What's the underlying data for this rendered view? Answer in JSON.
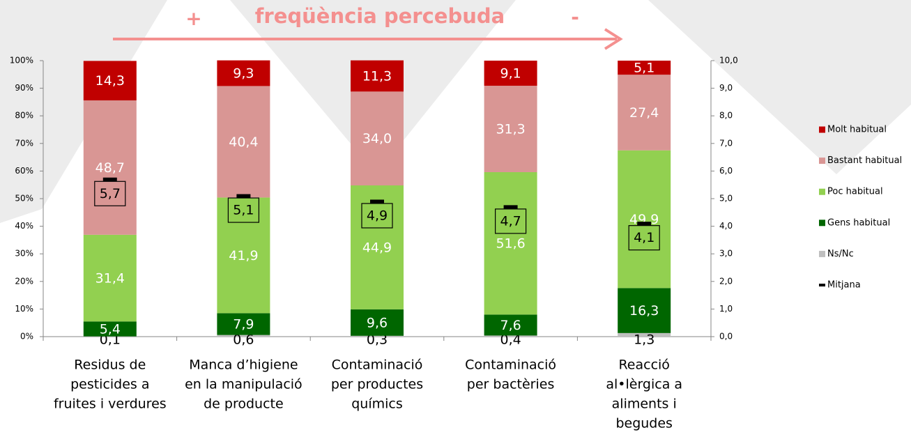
{
  "chart_data": {
    "type": "stacked_bar",
    "title": "freqüència percebuda",
    "annotations": [
      "+",
      "-"
    ],
    "categories": [
      [
        "Residus de",
        "pesticides a",
        "fruites i verdures"
      ],
      [
        "Manca d’higiene",
        "en la manipulació",
        "de producte"
      ],
      [
        "Contaminació",
        "per productes",
        "químics"
      ],
      [
        "Contaminació",
        "per bactèries"
      ],
      [
        "Reacció",
        "al•lèrgica a",
        "aliments i",
        "begudes"
      ]
    ],
    "series": [
      {
        "name": "Ns/Nc",
        "color": "#bfbfbf",
        "values": [
          0.1,
          0.6,
          0.3,
          0.4,
          1.3
        ],
        "value_labels": [
          "0,1",
          "0,6",
          "0,3",
          "0,4",
          "1,3"
        ]
      },
      {
        "name": "Gens habitual",
        "color": "#006600",
        "values": [
          5.4,
          7.9,
          9.6,
          7.6,
          16.3
        ],
        "value_labels": [
          "5,4",
          "7,9",
          "9,6",
          "7,6",
          "16,3"
        ]
      },
      {
        "name": "Poc habitual",
        "color": "#92d050",
        "values": [
          31.4,
          41.9,
          44.9,
          51.6,
          49.9
        ],
        "value_labels": [
          "31,4",
          "41,9",
          "44,9",
          "51,6",
          "49,9"
        ]
      },
      {
        "name": "Bastant habitual",
        "color": "#d99694",
        "values": [
          48.7,
          40.4,
          34.0,
          31.3,
          27.4
        ],
        "value_labels": [
          "48,7",
          "40,4",
          "34,0",
          "31,3",
          "27,4"
        ]
      },
      {
        "name": "Molt habitual",
        "color": "#c00000",
        "values": [
          14.3,
          9.3,
          11.3,
          9.1,
          5.1
        ],
        "value_labels": [
          "14,3",
          "9,3",
          "11,3",
          "9,1",
          "5,1"
        ]
      },
      {
        "name": "Mitjana",
        "color": "#000000",
        "axis": "y2",
        "marker": "dash",
        "values": [
          5.7,
          5.1,
          4.9,
          4.7,
          4.1
        ],
        "value_labels": [
          "5,7",
          "5,1",
          "4,9",
          "4,7",
          "4,1"
        ]
      }
    ],
    "ylim": [
      0,
      100
    ],
    "yticks": [
      {
        "value": 0,
        "label": "0%"
      },
      {
        "value": 10,
        "label": "10%"
      },
      {
        "value": 20,
        "label": "20%"
      },
      {
        "value": 30,
        "label": "30%"
      },
      {
        "value": 40,
        "label": "40%"
      },
      {
        "value": 50,
        "label": "50%"
      },
      {
        "value": 60,
        "label": "60%"
      },
      {
        "value": 70,
        "label": "70%"
      },
      {
        "value": 80,
        "label": "80%"
      },
      {
        "value": 90,
        "label": "90%"
      },
      {
        "value": 100,
        "label": "100%"
      }
    ],
    "y2lim": [
      0,
      10
    ],
    "y2ticks": [
      {
        "value": 0,
        "label": "0,0"
      },
      {
        "value": 1,
        "label": "1,0"
      },
      {
        "value": 2,
        "label": "2,0"
      },
      {
        "value": 3,
        "label": "3,0"
      },
      {
        "value": 4,
        "label": "4,0"
      },
      {
        "value": 5,
        "label": "5,0"
      },
      {
        "value": 6,
        "label": "6,0"
      },
      {
        "value": 7,
        "label": "7,0"
      },
      {
        "value": 8,
        "label": "8,0"
      },
      {
        "value": 9,
        "label": "9,0"
      },
      {
        "value": 10,
        "label": "10,0"
      }
    ],
    "legend": "right"
  }
}
